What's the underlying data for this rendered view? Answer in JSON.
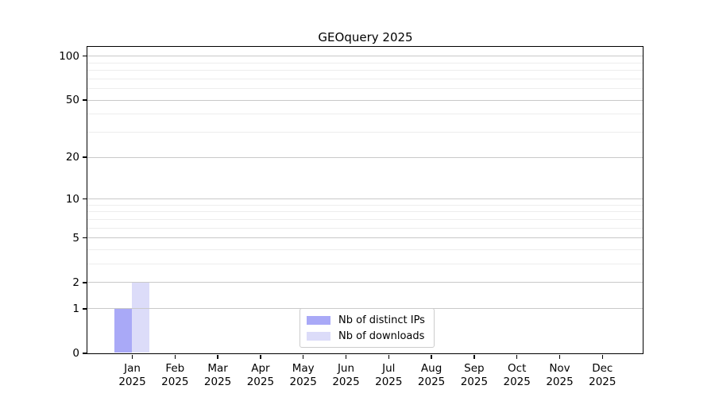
{
  "chart_data": {
    "type": "bar",
    "title": "GEOquery 2025",
    "categories": [
      "Jan",
      "Feb",
      "Mar",
      "Apr",
      "May",
      "Jun",
      "Jul",
      "Aug",
      "Sep",
      "Oct",
      "Nov",
      "Dec"
    ],
    "category_year": "2025",
    "series": [
      {
        "name": "Nb of distinct IPs",
        "color": "#a9a9f7",
        "values": [
          1,
          0,
          0,
          0,
          0,
          0,
          0,
          0,
          0,
          0,
          0,
          0
        ]
      },
      {
        "name": "Nb of downloads",
        "color": "#dcdcf9",
        "values": [
          2,
          0,
          0,
          0,
          0,
          0,
          0,
          0,
          0,
          0,
          0,
          0
        ]
      }
    ],
    "xlabel": "",
    "ylabel": "",
    "y_axis": {
      "scale": "log10(1+y)",
      "major_ticks": [
        0,
        1,
        2,
        5,
        10,
        20,
        50,
        100
      ],
      "minor_ticks": [
        3,
        4,
        6,
        7,
        8,
        9,
        30,
        40,
        60,
        70,
        80,
        90
      ],
      "top_value": 115,
      "major_grid_color": "#c9c9c9",
      "minor_grid_color": "#ededed"
    },
    "legend": {
      "position": "bottom-center",
      "entries": [
        "Nb of distinct IPs",
        "Nb of downloads"
      ]
    },
    "grid": "on",
    "background": "#ffffff"
  }
}
